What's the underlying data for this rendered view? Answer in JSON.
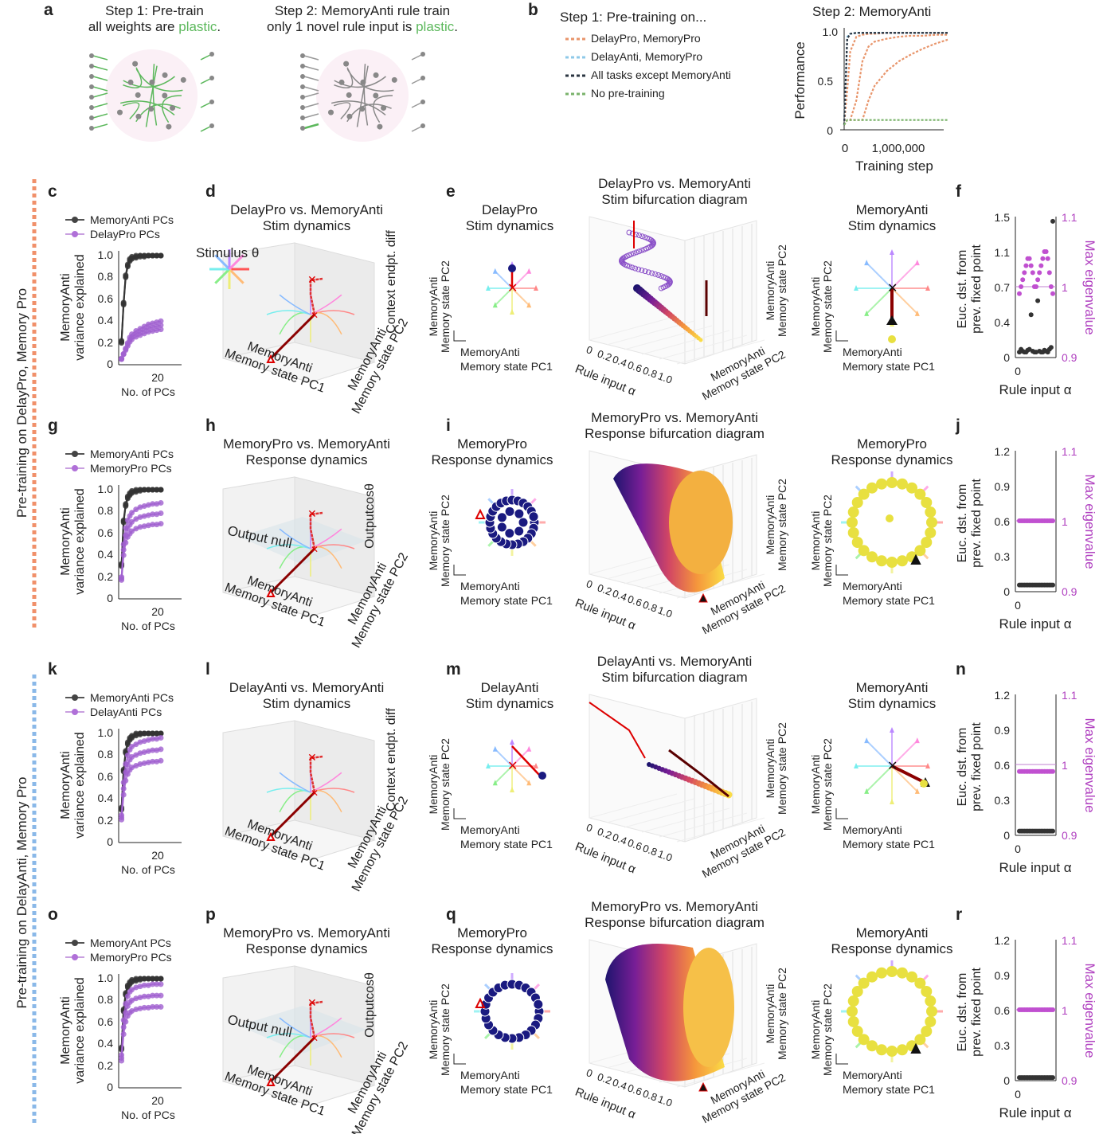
{
  "panel_a": {
    "letter": "a",
    "step1_line1": "Step 1: Pre-train",
    "step1_prefix": "all weights are ",
    "step1_plastic": "plastic",
    "step1_suffix": ".",
    "step2_line1": "Step 2: MemoryAnti rule train",
    "step2_prefix": "only 1 novel rule input is ",
    "step2_plastic": "plastic",
    "step2_suffix": ".",
    "plastic_color": "#5cb85c"
  },
  "panel_b": {
    "letter": "b",
    "legend_title": "Step 1: Pre-training on...",
    "legend": [
      {
        "label": "DelayPro, MemoryPro",
        "color": "#e8956b"
      },
      {
        "label": "DelayAnti, MemoryPro",
        "color": "#8ec9e8"
      },
      {
        "label": "All tasks except MemoryAnti",
        "color": "#2a3440"
      },
      {
        "label": "No pre-training",
        "color": "#7ab36b"
      }
    ],
    "plot_title": "Step 2: MemoryAnti",
    "ylabel": "Performance",
    "xlabel": "Training step",
    "yticks": [
      "1.0",
      "0.5",
      "0"
    ],
    "xticks": [
      "0",
      "1,000,000"
    ]
  },
  "side_labels": [
    "Pre-training on DelayPro, Memory Pro",
    "Pre-training on DelayAnti, Memory Pro"
  ],
  "side_colors": [
    "#f0906a",
    "#8ab8e8"
  ],
  "rows": [
    {
      "letters": [
        "c",
        "d",
        "e",
        "f"
      ],
      "legend": [
        "MemoryAnti PCs",
        "DelayPro PCs"
      ],
      "pcs_ylabel": [
        "MemoryAnti",
        "variance explained"
      ],
      "pcs_yticks": [
        "1.0",
        "0.8",
        "0.6",
        "0.4",
        "0.2",
        "0"
      ],
      "pcs_xtick": "20",
      "pcs_xlabel": "No. of PCs",
      "d_title": [
        "DelayPro vs. MemoryAnti",
        "Stim dynamics"
      ],
      "d_extra": "Stimulus θ",
      "d_x": [
        "MemoryAnti",
        "Memory state PC1"
      ],
      "d_y": [
        "MemoryAnti",
        "Memory state PC2"
      ],
      "d_z": "Context endpt. diff",
      "e_title": [
        "DelayPro",
        "Stim dynamics"
      ],
      "pca_y": [
        "MemoryAnti",
        "Memory state PC2"
      ],
      "pca_x": [
        "MemoryAnti",
        "Memory state PC1"
      ],
      "bif_title": [
        "DelayPro vs. MemoryAnti",
        "Stim bifurcation diagram"
      ],
      "bif_x": "Rule input α",
      "bif_ticks": [
        "0",
        "0.2",
        "0.4",
        "0.6",
        "0.8",
        "1.0"
      ],
      "bif_z": [
        "MemoryAnti",
        "Memory state PC2"
      ],
      "bif_y": [
        "MemoryAnti",
        "Memory state PC2"
      ],
      "r_title": [
        "MemoryAnti",
        "Stim dynamics"
      ],
      "f_yticks": [
        "1.5",
        "1.1",
        "0.7",
        "0.4",
        "0"
      ],
      "f_ryticks": [
        "1.1",
        "1",
        "0.9"
      ],
      "f_ylabel": [
        "Euc. dst. from",
        "prev. fixed point"
      ],
      "f_rylabel": "Max eigenvalue",
      "f_xtick": "0",
      "f_xlabel": "Rule input α",
      "mode": "stim"
    },
    {
      "letters": [
        "g",
        "h",
        "i",
        "j"
      ],
      "legend": [
        "MemoryAnti PCs",
        "MemoryPro PCs"
      ],
      "pcs_ylabel": [
        "MemoryAnti",
        "variance explained"
      ],
      "pcs_yticks": [
        "1.0",
        "0.8",
        "0.6",
        "0.4",
        "0.2",
        "0"
      ],
      "pcs_xtick": "20",
      "pcs_xlabel": "No. of PCs",
      "d_title": [
        "MemoryPro vs. MemoryAnti",
        "Response dynamics"
      ],
      "d_extra": "Output null",
      "d_x": [
        "MemoryAnti",
        "Memory state PC1"
      ],
      "d_y": [
        "MemoryAnti",
        "Memory state PC2"
      ],
      "d_z": "Outputcosθ",
      "e_title": [
        "MemoryPro",
        "Response dynamics"
      ],
      "pca_y": [
        "MemoryAnti",
        "Memory state PC2"
      ],
      "pca_x": [
        "MemoryAnti",
        "Memory state PC1"
      ],
      "bif_title": [
        "MemoryPro vs. MemoryAnti",
        "Response bifurcation diagram"
      ],
      "bif_x": "Rule input α",
      "bif_ticks": [
        "0",
        "0.2",
        "0.4",
        "0.6",
        "0.8",
        "1.0"
      ],
      "bif_z": [
        "MemoryAnti",
        "Memory state PC2"
      ],
      "bif_y": [
        "MemoryAnti",
        "Memory state PC2"
      ],
      "r_title": [
        "MemoryPro",
        "Response dynamics"
      ],
      "f_yticks": [
        "1.2",
        "0.9",
        "0.6",
        "0.3",
        "0"
      ],
      "f_ryticks": [
        "1.1",
        "1",
        "0.9"
      ],
      "f_ylabel": [
        "Euc. dst. from",
        "prev. fixed point"
      ],
      "f_rylabel": "Max eigenvalue",
      "f_xtick": "0",
      "f_xlabel": "Rule input α",
      "mode": "resp"
    },
    {
      "letters": [
        "k",
        "l",
        "m",
        "n"
      ],
      "legend": [
        "MemoryAnti PCs",
        "DelayAnti PCs"
      ],
      "pcs_ylabel": [
        "MemoryAnti",
        "variance explained"
      ],
      "pcs_yticks": [
        "1.0",
        "0.8",
        "0.6",
        "0.4",
        "0.2",
        "0"
      ],
      "pcs_xtick": "20",
      "pcs_xlabel": "No. of PCs",
      "d_title": [
        "DelayAnti vs. MemoryAnti",
        "Stim dynamics"
      ],
      "d_extra": "",
      "d_x": [
        "MemoryAnti",
        "Memory state PC1"
      ],
      "d_y": [
        "MemoryAnti",
        "Memory state PC2"
      ],
      "d_z": "Context endpt. diff",
      "e_title": [
        "DelayAnti",
        "Stim dynamics"
      ],
      "pca_y": [
        "MemoryAnti",
        "Memory state PC2"
      ],
      "pca_x": [
        "MemoryAnti",
        "Memory state PC1"
      ],
      "bif_title": [
        "DelayAnti vs. MemoryAnti",
        "Stim bifurcation diagram"
      ],
      "bif_x": "Rule input α",
      "bif_ticks": [
        "0",
        "0.2",
        "0.4",
        "0.6",
        "0.8",
        "1.0"
      ],
      "bif_z": [
        "MemoryAnti",
        "Memory state PC2"
      ],
      "bif_y": [
        "MemoryAnti",
        "Memory state PC2"
      ],
      "r_title": [
        "MemoryAnti",
        "Stim dynamics"
      ],
      "f_yticks": [
        "1.2",
        "0.9",
        "0.6",
        "0.3",
        "0"
      ],
      "f_ryticks": [
        "1.1",
        "1",
        "0.9"
      ],
      "f_ylabel": [
        "Euc. dst. from",
        "prev. fixed point"
      ],
      "f_rylabel": "Max eigenvalue",
      "f_xtick": "0",
      "f_xlabel": "Rule input α",
      "mode": "stim2"
    },
    {
      "letters": [
        "o",
        "p",
        "q",
        "r"
      ],
      "legend": [
        "MemoryAnt PCs",
        "MemoryPro PCs"
      ],
      "pcs_ylabel": [
        "MemoryAnti",
        "variance explained"
      ],
      "pcs_yticks": [
        "1.0",
        "0.8",
        "0.6",
        "0.4",
        "0.2",
        "0"
      ],
      "pcs_xtick": "20",
      "pcs_xlabel": "No. of PCs",
      "d_title": [
        "MemoryPro vs. MemoryAnti",
        "Response dynamics"
      ],
      "d_extra": "Output null",
      "d_x": [
        "MemoryAnti",
        "Memory state PC1"
      ],
      "d_y": [
        "MemoryAnti",
        "Memory state PC2"
      ],
      "d_z": "Outputcosθ",
      "e_title": [
        "MemoryPro",
        "Response dynamics"
      ],
      "pca_y": [
        "MemoryAnti",
        "Memory state PC2"
      ],
      "pca_x": [
        "MemoryAnti",
        "Memory state PC1"
      ],
      "bif_title": [
        "MemoryPro vs. MemoryAnti",
        "Response bifurcation diagram"
      ],
      "bif_x": "Rule input α",
      "bif_ticks": [
        "0",
        "0.2",
        "0.4",
        "0.6",
        "0.8",
        "1.0"
      ],
      "bif_z": [
        "MemoryAnti",
        "Memory state PC2"
      ],
      "bif_y": [
        "MemoryAnti",
        "Memory state PC2"
      ],
      "r_title": [
        "MemoryAnti",
        "Response dynamics"
      ],
      "f_yticks": [
        "1.2",
        "0.9",
        "0.6",
        "0.3",
        "0"
      ],
      "f_ryticks": [
        "1.1",
        "1",
        "0.9"
      ],
      "f_ylabel": [
        "Euc. dst. from",
        "prev. fixed point"
      ],
      "f_rylabel": "Max eigenvalue",
      "f_xtick": "0",
      "f_xlabel": "Rule input α",
      "mode": "resp2"
    }
  ],
  "chart_data": [
    {
      "panel": "b",
      "type": "line",
      "title": "Step 2: MemoryAnti",
      "xlabel": "Training step",
      "ylabel": "Performance",
      "xlim": [
        0,
        1700000
      ],
      "ylim": [
        0,
        1.0
      ],
      "x": [
        0,
        50000,
        100000,
        200000,
        300000,
        400000,
        500000,
        700000,
        900000,
        1100000,
        1300000,
        1500000,
        1700000
      ],
      "series": [
        {
          "name": "DelayPro, MemoryPro",
          "color": "#e8956b",
          "values": [
            0.05,
            0.4,
            0.8,
            0.95,
            0.97,
            0.98,
            0.98,
            0.99,
            0.99,
            0.99,
            0.99,
            0.99,
            0.99
          ]
        },
        {
          "name": "DelayPro, MemoryPro",
          "color": "#e8956b",
          "values": [
            0.05,
            0.1,
            0.1,
            0.3,
            0.7,
            0.85,
            0.9,
            0.93,
            0.95,
            0.96,
            0.96,
            0.97,
            0.97
          ]
        },
        {
          "name": "DelayPro, MemoryPro",
          "color": "#e8956b",
          "values": [
            0.05,
            0.1,
            0.1,
            0.1,
            0.1,
            0.3,
            0.45,
            0.6,
            0.7,
            0.77,
            0.83,
            0.88,
            0.92
          ]
        },
        {
          "name": "DelayAnti, MemoryPro",
          "color": "#8ec9e8",
          "values": [
            0.05,
            0.95,
            0.98,
            0.99,
            0.99,
            0.99,
            0.99,
            0.99,
            0.99,
            0.99,
            0.99,
            0.99,
            0.99
          ]
        },
        {
          "name": "All tasks except MemoryAnti",
          "color": "#2a3440",
          "values": [
            0.05,
            0.93,
            0.98,
            0.99,
            0.99,
            0.99,
            0.99,
            0.99,
            0.99,
            0.99,
            0.99,
            0.99,
            0.99
          ]
        },
        {
          "name": "No pre-training",
          "color": "#7ab36b",
          "values": [
            0.05,
            0.1,
            0.1,
            0.1,
            0.1,
            0.1,
            0.1,
            0.1,
            0.1,
            0.1,
            0.1,
            0.1,
            0.1
          ]
        }
      ]
    },
    {
      "panel": "c",
      "type": "line",
      "xlabel": "No. of PCs",
      "ylabel": "MemoryAnti variance explained",
      "ylim": [
        0,
        1.0
      ],
      "x": [
        1,
        2,
        3,
        4,
        5,
        6,
        8,
        10,
        12,
        14,
        16,
        18,
        20
      ],
      "series": [
        {
          "name": "MemoryAnti PCs",
          "color": "#333333",
          "values": [
            0.2,
            0.55,
            0.8,
            0.9,
            0.95,
            0.97,
            0.98,
            0.99,
            0.99,
            1.0,
            1.0,
            1.0,
            1.0
          ]
        },
        {
          "name": "DelayPro PCs",
          "color": "#a060d0",
          "values": [
            0.05,
            0.1,
            0.15,
            0.2,
            0.25,
            0.28,
            0.31,
            0.33,
            0.35,
            0.37,
            0.38,
            0.39,
            0.4
          ]
        }
      ]
    },
    {
      "panel": "g",
      "type": "line",
      "xlabel": "No. of PCs",
      "ylabel": "MemoryAnti variance explained",
      "ylim": [
        0,
        1.0
      ],
      "x": [
        1,
        2,
        3,
        4,
        5,
        6,
        8,
        10,
        12,
        14,
        16,
        18,
        20
      ],
      "series": [
        {
          "name": "MemoryAnti PCs",
          "color": "#333333",
          "values": [
            0.3,
            0.7,
            0.85,
            0.92,
            0.95,
            0.97,
            0.98,
            0.99,
            1.0,
            1.0,
            1.0,
            1.0,
            1.0
          ]
        },
        {
          "name": "MemoryPro PCs",
          "color": "#a060d0",
          "values": [
            0.2,
            0.5,
            0.65,
            0.72,
            0.76,
            0.79,
            0.82,
            0.84,
            0.85,
            0.86,
            0.87,
            0.87,
            0.88
          ]
        }
      ]
    },
    {
      "panel": "k",
      "type": "line",
      "xlabel": "No. of PCs",
      "ylabel": "MemoryAnti variance explained",
      "ylim": [
        0,
        1.0
      ],
      "x": [
        1,
        2,
        3,
        4,
        5,
        6,
        8,
        10,
        12,
        14,
        16,
        18,
        20
      ],
      "series": [
        {
          "name": "MemoryAnti PCs",
          "color": "#333333",
          "values": [
            0.3,
            0.65,
            0.82,
            0.9,
            0.94,
            0.96,
            0.98,
            0.99,
            1.0,
            1.0,
            1.0,
            1.0,
            1.0
          ]
        },
        {
          "name": "DelayAnti PCs",
          "color": "#a060d0",
          "values": [
            0.25,
            0.55,
            0.72,
            0.8,
            0.85,
            0.88,
            0.9,
            0.92,
            0.93,
            0.94,
            0.95,
            0.95,
            0.96
          ]
        }
      ]
    },
    {
      "panel": "o",
      "type": "line",
      "xlabel": "No. of PCs",
      "ylabel": "MemoryAnti variance explained",
      "ylim": [
        0,
        1.0
      ],
      "x": [
        1,
        2,
        3,
        4,
        5,
        6,
        8,
        10,
        12,
        14,
        16,
        18,
        20
      ],
      "series": [
        {
          "name": "MemoryAnt PCs",
          "color": "#333333",
          "values": [
            0.35,
            0.7,
            0.85,
            0.92,
            0.95,
            0.97,
            0.98,
            0.99,
            1.0,
            1.0,
            1.0,
            1.0,
            1.0
          ]
        },
        {
          "name": "MemoryPro PCs",
          "color": "#a060d0",
          "values": [
            0.3,
            0.62,
            0.77,
            0.84,
            0.88,
            0.9,
            0.92,
            0.93,
            0.94,
            0.94,
            0.95,
            0.95,
            0.95
          ]
        }
      ]
    },
    {
      "panel": "f",
      "type": "scatter",
      "xlabel": "Rule input α",
      "ylabel": "Euc. dst. from prev. fixed point",
      "y2label": "Max eigenvalue",
      "xlim": [
        0,
        1
      ],
      "ylim": [
        0,
        1.5
      ],
      "y2lim": [
        0.9,
        1.1
      ],
      "x": [
        0,
        0.05,
        0.1,
        0.15,
        0.2,
        0.25,
        0.3,
        0.35,
        0.4,
        0.45,
        0.5,
        0.55,
        0.6,
        0.65,
        0.7,
        0.75,
        0.8,
        0.85,
        0.9,
        0.95,
        1.0
      ],
      "dist": [
        0.05,
        0.08,
        0.06,
        0.05,
        0.05,
        0.07,
        0.08,
        0.45,
        0.06,
        0.05,
        0.05,
        0.6,
        0.06,
        0.05,
        0.05,
        0.07,
        0.06,
        0.05,
        0.08,
        0.1,
        1.45
      ],
      "eig": [
        0.99,
        1.0,
        1.01,
        1.02,
        1.03,
        1.04,
        1.04,
        1.03,
        1.02,
        1.0,
        1.0,
        1.01,
        1.02,
        1.03,
        1.04,
        1.05,
        1.05,
        1.04,
        1.02,
        1.0,
        0.99
      ]
    },
    {
      "panel": "j",
      "type": "scatter",
      "xlabel": "Rule input α",
      "ylim": [
        0,
        1.2
      ],
      "y2lim": [
        0.9,
        1.1
      ],
      "x_count": 21,
      "dist_level": 0.05,
      "eig_level": 1.0
    },
    {
      "panel": "n",
      "type": "scatter",
      "xlabel": "Rule input α",
      "ylim": [
        0,
        1.2
      ],
      "y2lim": [
        0.9,
        1.1
      ],
      "x_count": 21,
      "dist_level": 0.03,
      "eig_level": 0.99
    },
    {
      "panel": "r",
      "type": "scatter",
      "xlabel": "Rule input α",
      "ylim": [
        0,
        1.2
      ],
      "y2lim": [
        0.9,
        1.1
      ],
      "x_count": 21,
      "dist_level": 0.02,
      "eig_level": 1.0
    }
  ]
}
